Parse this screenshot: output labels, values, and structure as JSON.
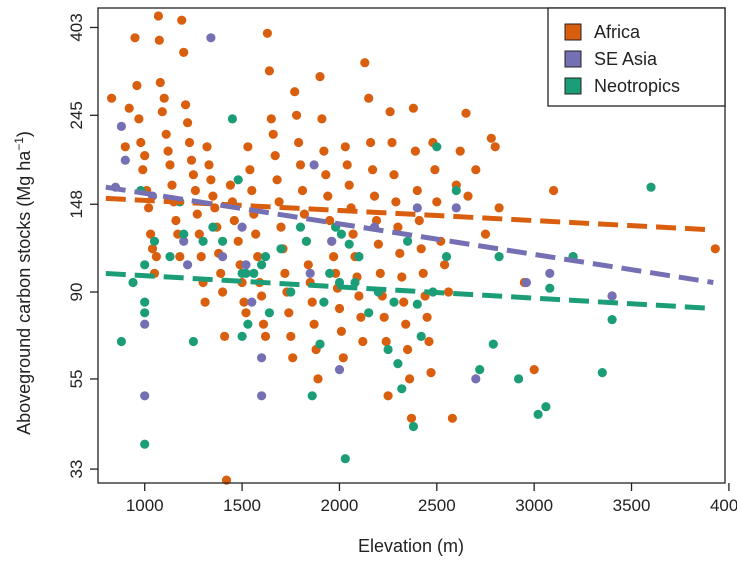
{
  "chart_data": {
    "type": "scatter",
    "title": "",
    "xlabel": "Elevation (m)",
    "ylabel": "Aboveground carbon stocks (Mg ha",
    "ylabel_sup": "−1",
    "ylabel_close": ")",
    "xlim": [
      760,
      3980
    ],
    "ylim_log": [
      30.5,
      450
    ],
    "y_scale": "log",
    "x_ticks": [
      1000,
      1500,
      2000,
      2500,
      3000,
      3500,
      4000
    ],
    "x_tick_labels": [
      "1000",
      "1500",
      "2000",
      "2500",
      "3000",
      "3500",
      "4000"
    ],
    "y_ticks": [
      33,
      55,
      90,
      148,
      245,
      403
    ],
    "y_tick_labels": [
      "33",
      "55",
      "90",
      "148",
      "245",
      "403"
    ],
    "grid": false,
    "legend_placement": "top-right",
    "series": [
      {
        "name": "Africa",
        "color": "#D95F0E",
        "trend": [
          [
            800,
            153
          ],
          [
            3920,
            128
          ]
        ],
        "points": [
          [
            830,
            270
          ],
          [
            900,
            205
          ],
          [
            920,
            255
          ],
          [
            950,
            380
          ],
          [
            960,
            290
          ],
          [
            970,
            240
          ],
          [
            980,
            210
          ],
          [
            990,
            180
          ],
          [
            1000,
            195
          ],
          [
            1010,
            160
          ],
          [
            1020,
            145
          ],
          [
            1030,
            125
          ],
          [
            1040,
            115
          ],
          [
            1050,
            100
          ],
          [
            1060,
            110
          ],
          [
            1070,
            430
          ],
          [
            1075,
            375
          ],
          [
            1080,
            295
          ],
          [
            1090,
            250
          ],
          [
            1100,
            270
          ],
          [
            1110,
            220
          ],
          [
            1120,
            200
          ],
          [
            1130,
            185
          ],
          [
            1140,
            165
          ],
          [
            1150,
            150
          ],
          [
            1160,
            135
          ],
          [
            1170,
            125
          ],
          [
            1180,
            110
          ],
          [
            1190,
            420
          ],
          [
            1200,
            350
          ],
          [
            1210,
            260
          ],
          [
            1220,
            235
          ],
          [
            1230,
            210
          ],
          [
            1240,
            190
          ],
          [
            1250,
            175
          ],
          [
            1260,
            160
          ],
          [
            1270,
            140
          ],
          [
            1280,
            125
          ],
          [
            1290,
            110
          ],
          [
            1300,
            95
          ],
          [
            1310,
            85
          ],
          [
            1320,
            205
          ],
          [
            1330,
            185
          ],
          [
            1340,
            170
          ],
          [
            1350,
            155
          ],
          [
            1360,
            145
          ],
          [
            1370,
            130
          ],
          [
            1380,
            112
          ],
          [
            1390,
            100
          ],
          [
            1400,
            90
          ],
          [
            1410,
            70
          ],
          [
            1420,
            31
          ],
          [
            1440,
            165
          ],
          [
            1450,
            150
          ],
          [
            1460,
            135
          ],
          [
            1480,
            120
          ],
          [
            1490,
            105
          ],
          [
            1500,
            95
          ],
          [
            1510,
            85
          ],
          [
            1520,
            80
          ],
          [
            1530,
            205
          ],
          [
            1540,
            180
          ],
          [
            1550,
            160
          ],
          [
            1560,
            140
          ],
          [
            1570,
            125
          ],
          [
            1580,
            110
          ],
          [
            1590,
            95
          ],
          [
            1600,
            88
          ],
          [
            1610,
            75
          ],
          [
            1620,
            70
          ],
          [
            1630,
            390
          ],
          [
            1640,
            315
          ],
          [
            1650,
            240
          ],
          [
            1660,
            220
          ],
          [
            1670,
            195
          ],
          [
            1680,
            170
          ],
          [
            1690,
            150
          ],
          [
            1700,
            130
          ],
          [
            1710,
            115
          ],
          [
            1720,
            100
          ],
          [
            1730,
            90
          ],
          [
            1740,
            80
          ],
          [
            1750,
            70
          ],
          [
            1760,
            62
          ],
          [
            1770,
            280
          ],
          [
            1780,
            245
          ],
          [
            1790,
            210
          ],
          [
            1800,
            185
          ],
          [
            1810,
            160
          ],
          [
            1820,
            140
          ],
          [
            1830,
            120
          ],
          [
            1840,
            105
          ],
          [
            1850,
            95
          ],
          [
            1860,
            85
          ],
          [
            1870,
            75
          ],
          [
            1880,
            65
          ],
          [
            1890,
            55
          ],
          [
            1900,
            305
          ],
          [
            1910,
            240
          ],
          [
            1920,
            200
          ],
          [
            1930,
            175
          ],
          [
            1940,
            155
          ],
          [
            1950,
            135
          ],
          [
            1960,
            120
          ],
          [
            1970,
            110
          ],
          [
            1980,
            100
          ],
          [
            1990,
            92
          ],
          [
            2000,
            82
          ],
          [
            2010,
            72
          ],
          [
            2020,
            62
          ],
          [
            2030,
            205
          ],
          [
            2040,
            185
          ],
          [
            2050,
            165
          ],
          [
            2060,
            145
          ],
          [
            2070,
            125
          ],
          [
            2080,
            110
          ],
          [
            2090,
            98
          ],
          [
            2100,
            88
          ],
          [
            2110,
            78
          ],
          [
            2120,
            68
          ],
          [
            2130,
            330
          ],
          [
            2150,
            270
          ],
          [
            2160,
            210
          ],
          [
            2170,
            180
          ],
          [
            2180,
            155
          ],
          [
            2190,
            135
          ],
          [
            2200,
            118
          ],
          [
            2210,
            100
          ],
          [
            2220,
            88
          ],
          [
            2230,
            78
          ],
          [
            2240,
            68
          ],
          [
            2250,
            50
          ],
          [
            2260,
            250
          ],
          [
            2270,
            210
          ],
          [
            2280,
            175
          ],
          [
            2290,
            150
          ],
          [
            2300,
            130
          ],
          [
            2310,
            112
          ],
          [
            2320,
            98
          ],
          [
            2330,
            85
          ],
          [
            2340,
            75
          ],
          [
            2350,
            65
          ],
          [
            2360,
            55
          ],
          [
            2370,
            44
          ],
          [
            2380,
            255
          ],
          [
            2390,
            200
          ],
          [
            2400,
            160
          ],
          [
            2410,
            135
          ],
          [
            2420,
            115
          ],
          [
            2430,
            100
          ],
          [
            2440,
            88
          ],
          [
            2450,
            78
          ],
          [
            2460,
            68
          ],
          [
            2470,
            57
          ],
          [
            2480,
            210
          ],
          [
            2490,
            180
          ],
          [
            2500,
            150
          ],
          [
            2520,
            120
          ],
          [
            2540,
            105
          ],
          [
            2560,
            90
          ],
          [
            2580,
            44
          ],
          [
            2600,
            165
          ],
          [
            2620,
            200
          ],
          [
            2650,
            248
          ],
          [
            2660,
            155
          ],
          [
            2700,
            180
          ],
          [
            2750,
            125
          ],
          [
            2780,
            215
          ],
          [
            2800,
            205
          ],
          [
            2820,
            145
          ],
          [
            2950,
            95
          ],
          [
            3000,
            58
          ],
          [
            3100,
            160
          ],
          [
            3200,
            110
          ],
          [
            3400,
            88
          ],
          [
            3930,
            115
          ]
        ]
      },
      {
        "name": "SE Asia",
        "color": "#7570B3",
        "trend": [
          [
            800,
            163
          ],
          [
            3920,
            95
          ]
        ],
        "points": [
          [
            880,
            230
          ],
          [
            900,
            190
          ],
          [
            850,
            163
          ],
          [
            1000,
            75
          ],
          [
            1000,
            50
          ],
          [
            1040,
            155
          ],
          [
            1200,
            120
          ],
          [
            1220,
            105
          ],
          [
            1340,
            380
          ],
          [
            1400,
            110
          ],
          [
            1500,
            130
          ],
          [
            1520,
            105
          ],
          [
            1550,
            85
          ],
          [
            1600,
            62
          ],
          [
            1600,
            50
          ],
          [
            1850,
            100
          ],
          [
            1870,
            185
          ],
          [
            1960,
            120
          ],
          [
            2000,
            58
          ],
          [
            2100,
            110
          ],
          [
            2180,
            130
          ],
          [
            2400,
            145
          ],
          [
            2600,
            145
          ],
          [
            2700,
            55
          ],
          [
            2960,
            95
          ],
          [
            3080,
            100
          ],
          [
            3400,
            88
          ]
        ]
      },
      {
        "name": "Neotropics",
        "color": "#1B9E77",
        "trend": [
          [
            800,
            100
          ],
          [
            3920,
            82
          ]
        ],
        "points": [
          [
            880,
            68
          ],
          [
            940,
            95
          ],
          [
            980,
            160
          ],
          [
            1000,
            105
          ],
          [
            1000,
            85
          ],
          [
            1000,
            80
          ],
          [
            1000,
            38
          ],
          [
            1050,
            120
          ],
          [
            1130,
            110
          ],
          [
            1180,
            150
          ],
          [
            1200,
            125
          ],
          [
            1250,
            68
          ],
          [
            1300,
            120
          ],
          [
            1350,
            130
          ],
          [
            1400,
            120
          ],
          [
            1450,
            240
          ],
          [
            1480,
            170
          ],
          [
            1500,
            70
          ],
          [
            1500,
            100
          ],
          [
            1520,
            100
          ],
          [
            1530,
            75
          ],
          [
            1560,
            100
          ],
          [
            1600,
            105
          ],
          [
            1620,
            110
          ],
          [
            1640,
            80
          ],
          [
            1700,
            115
          ],
          [
            1750,
            90
          ],
          [
            1800,
            130
          ],
          [
            1830,
            120
          ],
          [
            1860,
            50
          ],
          [
            1900,
            67
          ],
          [
            1920,
            85
          ],
          [
            1950,
            100
          ],
          [
            1980,
            130
          ],
          [
            2000,
            95
          ],
          [
            2010,
            125
          ],
          [
            2030,
            35
          ],
          [
            2050,
            118
          ],
          [
            2080,
            95
          ],
          [
            2100,
            110
          ],
          [
            2150,
            80
          ],
          [
            2200,
            90
          ],
          [
            2250,
            65
          ],
          [
            2280,
            85
          ],
          [
            2300,
            60
          ],
          [
            2320,
            52
          ],
          [
            2350,
            120
          ],
          [
            2380,
            42
          ],
          [
            2400,
            84
          ],
          [
            2420,
            70
          ],
          [
            2480,
            90
          ],
          [
            2500,
            205
          ],
          [
            2550,
            110
          ],
          [
            2600,
            160
          ],
          [
            2720,
            58
          ],
          [
            2790,
            67
          ],
          [
            2820,
            110
          ],
          [
            2920,
            55
          ],
          [
            3020,
            45
          ],
          [
            3060,
            47
          ],
          [
            3080,
            92
          ],
          [
            3200,
            110
          ],
          [
            3350,
            57
          ],
          [
            3400,
            77
          ],
          [
            3600,
            163
          ]
        ]
      }
    ]
  }
}
